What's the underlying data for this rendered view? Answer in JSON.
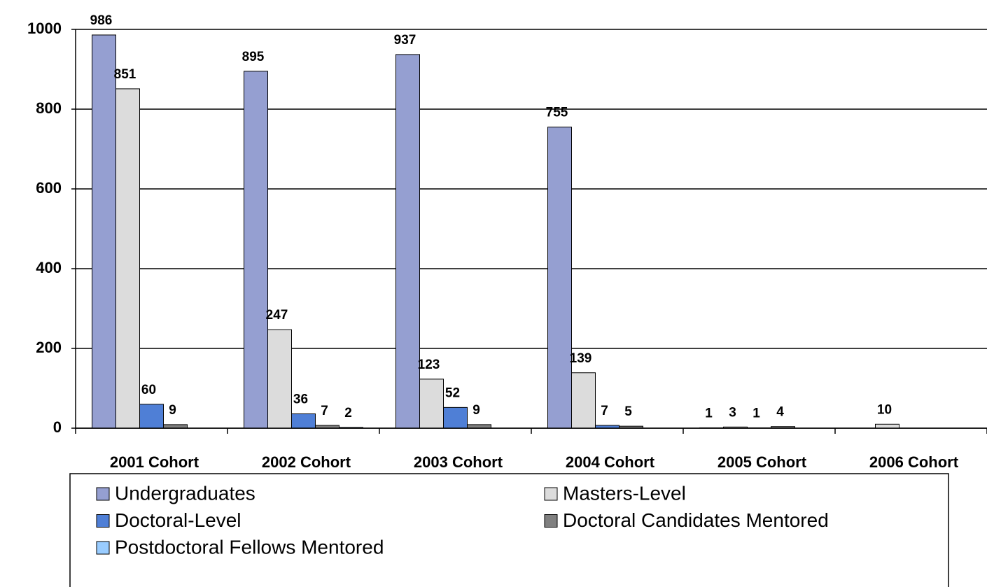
{
  "chart_data": {
    "type": "bar",
    "categories": [
      "2001 Cohort",
      "2002 Cohort",
      "2003 Cohort",
      "2004 Cohort",
      "2005 Cohort",
      "2006 Cohort"
    ],
    "series": [
      {
        "name": "Undergraduates",
        "color": "#959fd1",
        "values": [
          986,
          895,
          937,
          755,
          1,
          null
        ]
      },
      {
        "name": "Masters-Level",
        "color": "#dcdcdc",
        "values": [
          851,
          247,
          123,
          139,
          3,
          10
        ]
      },
      {
        "name": "Doctoral-Level",
        "color": "#4f7fd6",
        "values": [
          60,
          36,
          52,
          7,
          1,
          null
        ]
      },
      {
        "name": "Doctoral Candidates Mentored",
        "color": "#808080",
        "values": [
          9,
          7,
          9,
          5,
          4,
          null
        ]
      },
      {
        "name": "Postdoctoral Fellows Mentored",
        "color": "#99ccff",
        "values": [
          null,
          2,
          null,
          null,
          null,
          null
        ]
      }
    ],
    "ylim": [
      0,
      1000
    ],
    "yticks": [
      0,
      200,
      400,
      600,
      800,
      1000
    ],
    "grid": true,
    "legend": "bottom"
  }
}
